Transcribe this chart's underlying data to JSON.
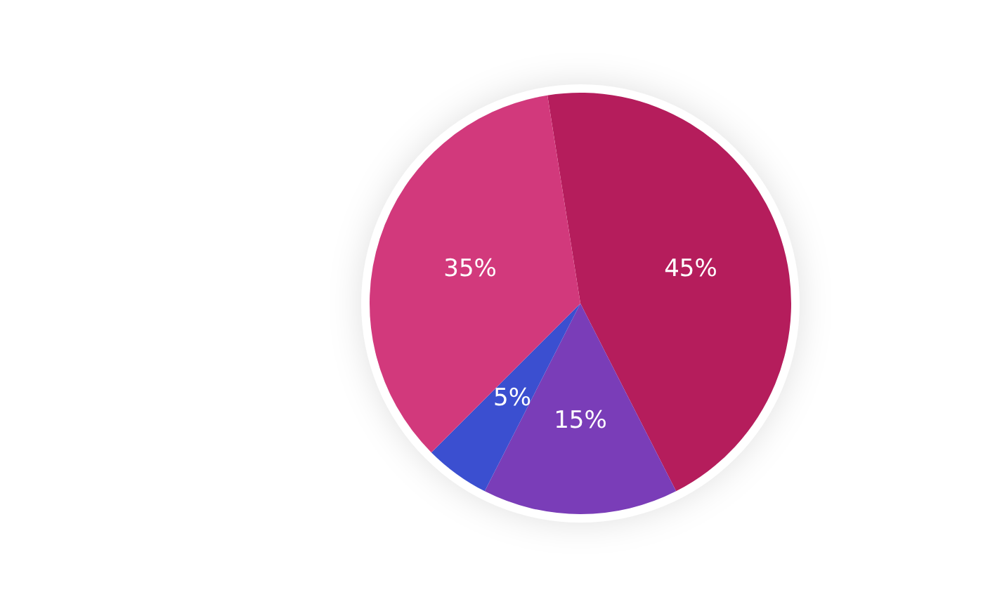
{
  "chart_data": {
    "type": "pie",
    "categories": [
      null,
      null,
      null,
      null
    ],
    "values": [
      45,
      15,
      5,
      35
    ],
    "colors": [
      "#b51d5c",
      "#7a3db8",
      "#3b4fd0",
      "#d2397c"
    ],
    "value_labels": [
      "45%",
      "15%",
      "5%",
      "35%"
    ]
  }
}
